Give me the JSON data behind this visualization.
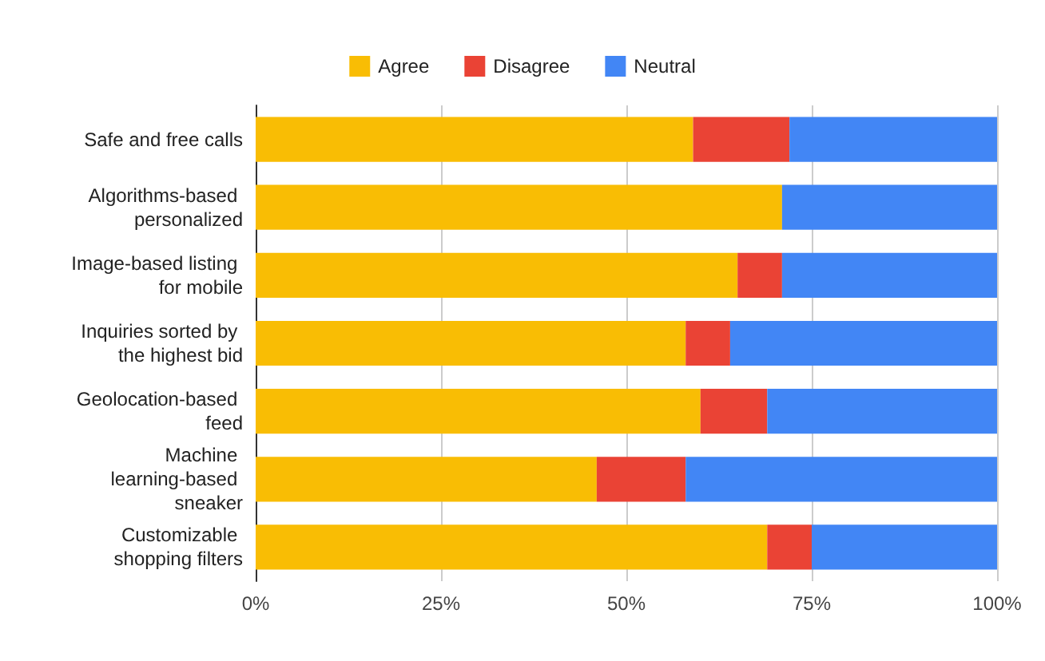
{
  "chart_data": {
    "type": "bar",
    "orientation": "horizontal",
    "stacked": true,
    "categories": [
      "Safe and free calls",
      "Algorithms-based personalized",
      "Image-based listing for mobile",
      "Inquiries sorted by the highest bid",
      "Geolocation-based feed",
      "Machine learning-based sneaker",
      "Customizable shopping filters"
    ],
    "series": [
      {
        "name": "Agree",
        "color": "#f9bd04",
        "values": [
          59,
          71,
          65,
          58,
          60,
          46,
          69
        ]
      },
      {
        "name": "Disagree",
        "color": "#ea4335",
        "values": [
          13,
          0,
          6,
          6,
          9,
          12,
          6
        ]
      },
      {
        "name": "Neutral",
        "color": "#4286f5",
        "values": [
          28,
          29,
          29,
          36,
          31,
          42,
          25
        ]
      }
    ],
    "xlim": [
      0,
      100
    ],
    "xticks": [
      {
        "value": 0,
        "label": "0%"
      },
      {
        "value": 25,
        "label": "25%"
      },
      {
        "value": 50,
        "label": "50%"
      },
      {
        "value": 75,
        "label": "75%"
      },
      {
        "value": 100,
        "label": "100%"
      }
    ],
    "grid": "x",
    "legend": "top"
  }
}
